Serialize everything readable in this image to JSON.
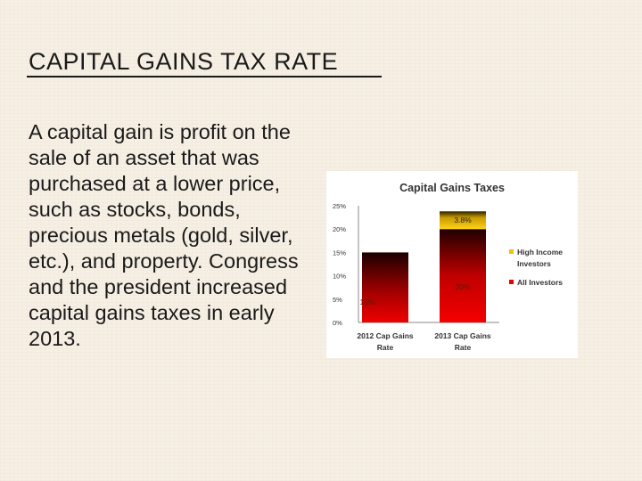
{
  "slide": {
    "title": "CAPITAL GAINS TAX RATE",
    "body": "A capital gain is profit on the sale of an asset that was purchased at a lower price, such as stocks, bonds, precious metals (gold, silver, etc.), and property.  Congress and the president increased capital gains taxes in early 2013."
  },
  "chart_data": {
    "type": "bar",
    "stacked": true,
    "title": "Capital Gains Taxes",
    "categories": [
      [
        "2012 Cap Gains",
        "Rate"
      ],
      [
        "2013 Cap Gains",
        "Rate"
      ]
    ],
    "series": [
      {
        "name": "All Investors",
        "values": [
          15,
          20
        ],
        "labels": [
          "15%",
          "20%"
        ],
        "color": "#e00000"
      },
      {
        "name": "High Income Investors",
        "values": [
          0,
          3.8
        ],
        "labels": [
          "",
          "3.8%"
        ],
        "color": "#f2c200"
      }
    ],
    "legend": [
      {
        "name": [
          "High Income",
          "Investors"
        ],
        "color": "#f2c200"
      },
      {
        "name": [
          "All Investors"
        ],
        "color": "#e00000"
      }
    ],
    "yticks": [
      "0%",
      "5%",
      "10%",
      "15%",
      "20%",
      "25%"
    ],
    "ylim": [
      0,
      25
    ],
    "grid": false,
    "legend_position": "right"
  }
}
